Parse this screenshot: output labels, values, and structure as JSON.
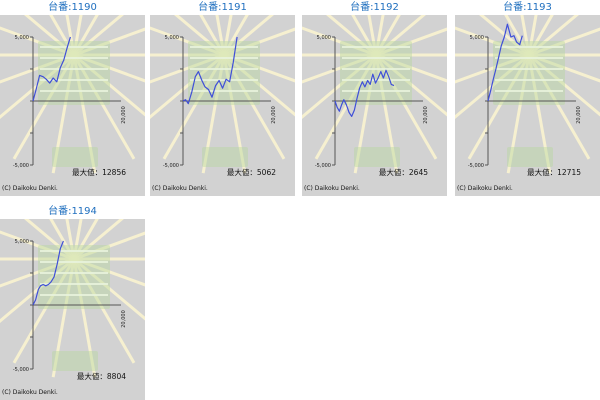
{
  "charts": [
    {
      "title": "台番:1190",
      "max_label": "最大値：12856",
      "copyright": "(C) Daikoku Denki."
    },
    {
      "title": "台番:1191",
      "max_label": "最大値：5062",
      "copyright": "(C) Daikoku Denki."
    },
    {
      "title": "台番:1192",
      "max_label": "最大値：2645",
      "copyright": "(C) Daikoku Denki."
    },
    {
      "title": "台番:1193",
      "max_label": "最大値：12715",
      "copyright": "(C) Daikoku Denki."
    },
    {
      "title": "台番:1194",
      "max_label": "最大値：8804",
      "copyright": "(C) Daikoku Denki."
    }
  ],
  "colors": {
    "title": "#1f6fbf",
    "panel_bg": "#d2d2d2",
    "line": "#3f4fd8",
    "axis": "#555555",
    "decor": "#b8d8a0",
    "rays": "#fff8d0"
  },
  "chart_data": [
    {
      "type": "line",
      "x": [
        0,
        700,
        1500,
        2300,
        3000,
        3800,
        4600,
        5400,
        6200,
        7000,
        7800,
        8500
      ],
      "y": [
        0,
        900,
        2000,
        1900,
        1700,
        1400,
        1800,
        1500,
        2600,
        3200,
        4200,
        5000
      ],
      "xlim": [
        0,
        20000
      ],
      "ylim": [
        -5000,
        5000
      ],
      "yticks": [
        "5,000",
        "-5,000"
      ],
      "xtick_labels": [
        "20,000"
      ]
    },
    {
      "type": "line",
      "x": [
        0,
        600,
        1200,
        2000,
        2800,
        3500,
        4300,
        5000,
        5800,
        6600,
        7400,
        8200,
        9000,
        9800,
        10600,
        11400,
        12300
      ],
      "y": [
        0,
        100,
        -200,
        700,
        1900,
        2300,
        1600,
        1100,
        900,
        300,
        1200,
        1600,
        1000,
        1700,
        1500,
        3000,
        5000
      ],
      "xlim": [
        0,
        20000
      ],
      "ylim": [
        -5000,
        5000
      ],
      "yticks": [
        "5,000",
        "-5,000"
      ],
      "xtick_labels": [
        "20,000"
      ]
    },
    {
      "type": "line",
      "x": [
        0,
        500,
        1000,
        1500,
        2000,
        2600,
        3200,
        3800,
        4400,
        5000,
        5600,
        6200,
        6800,
        7400,
        8000,
        8600,
        9200,
        9800,
        10400,
        11000,
        11600,
        12200,
        12800,
        13400
      ],
      "y": [
        0,
        -500,
        -800,
        -300,
        100,
        -300,
        -900,
        -1200,
        -700,
        200,
        1000,
        1500,
        1100,
        1600,
        1300,
        2100,
        1400,
        1800,
        2300,
        1800,
        2400,
        1900,
        1300,
        1200
      ],
      "xlim": [
        0,
        20000
      ],
      "ylim": [
        -5000,
        5000
      ],
      "yticks": [
        "5,000",
        "-5,000"
      ],
      "xtick_labels": [
        "20,000"
      ]
    },
    {
      "type": "line",
      "x": [
        0,
        600,
        1200,
        1800,
        2400,
        3000,
        3700,
        4400,
        5200,
        5900,
        6500,
        7200,
        7800
      ],
      "y": [
        0,
        800,
        1700,
        2500,
        3400,
        4300,
        5000,
        6000,
        5000,
        5100,
        4600,
        4400,
        5100
      ],
      "xlim": [
        0,
        20000
      ],
      "ylim": [
        -5000,
        5000
      ],
      "yticks": [
        "5,000",
        "-5,000"
      ],
      "xtick_labels": [
        "20,000"
      ]
    },
    {
      "type": "line",
      "x": [
        0,
        600,
        1200,
        1700,
        2300,
        2900,
        3500,
        4100,
        4800,
        5500,
        6200,
        6900
      ],
      "y": [
        0,
        400,
        1200,
        1500,
        1600,
        1500,
        1600,
        1800,
        2200,
        3200,
        4400,
        5000
      ],
      "xlim": [
        0,
        20000
      ],
      "ylim": [
        -5000,
        5000
      ],
      "yticks": [
        "5,000",
        "-5,000"
      ],
      "xtick_labels": [
        "20,000"
      ]
    }
  ]
}
